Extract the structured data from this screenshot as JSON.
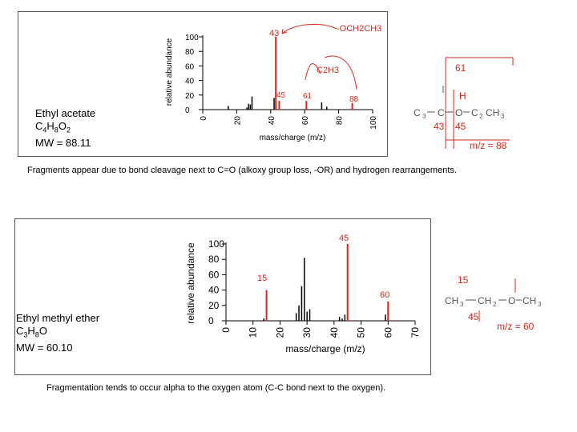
{
  "chart_data": [
    {
      "type": "bar",
      "compound": {
        "name": "Ethyl acetate",
        "formula_parts": [
          "C",
          "4",
          "H",
          "8",
          "O",
          "2"
        ],
        "mw": "MW = 88.11"
      },
      "xlabel": "mass/charge (m/z)",
      "ylabel": "relative abundance",
      "xlim": [
        0,
        100
      ],
      "ylim": [
        0,
        100
      ],
      "xticks": [
        "0",
        "20",
        "40",
        "60",
        "80",
        "100"
      ],
      "yticks": [
        "0",
        "20",
        "40",
        "60",
        "80",
        "100"
      ],
      "peaks": [
        {
          "x": 15,
          "y": 5
        },
        {
          "x": 26,
          "y": 3
        },
        {
          "x": 27,
          "y": 8
        },
        {
          "x": 28,
          "y": 7
        },
        {
          "x": 29,
          "y": 18
        },
        {
          "x": 42,
          "y": 16
        },
        {
          "x": 43,
          "y": 100,
          "hl": true
        },
        {
          "x": 45,
          "y": 12,
          "hl": true
        },
        {
          "x": 61,
          "y": 12,
          "hl": true
        },
        {
          "x": 70,
          "y": 10
        },
        {
          "x": 73,
          "y": 4
        },
        {
          "x": 88,
          "y": 9,
          "hl": true
        }
      ],
      "annotations": [
        "43",
        "-OCH2CH3",
        "C2H3",
        "45",
        "61",
        "88"
      ],
      "structure": {
        "frag_top": "61",
        "h": "H",
        "frag_43": "43",
        "frag_45": "45",
        "mz": "m/z = 88"
      },
      "caption": "Fragments appear due to bond cleavage next to C=O (alkoxy group loss, -OR) and hydrogen rearrangements."
    },
    {
      "type": "bar",
      "compound": {
        "name": "Ethyl methyl ether",
        "formula_parts": [
          "C",
          "3",
          "H",
          "8",
          "O",
          ""
        ],
        "mw": "MW = 60.10"
      },
      "xlabel": "mass/charge (m/z)",
      "ylabel": "relative abundance",
      "xlim": [
        0,
        70
      ],
      "ylim": [
        0,
        100
      ],
      "xticks": [
        "0",
        "10",
        "20",
        "30",
        "40",
        "50",
        "60",
        "70"
      ],
      "yticks": [
        "0",
        "20",
        "40",
        "60",
        "80",
        "100"
      ],
      "peaks": [
        {
          "x": 14,
          "y": 3
        },
        {
          "x": 15,
          "y": 40,
          "hl": true
        },
        {
          "x": 26,
          "y": 10
        },
        {
          "x": 27,
          "y": 20
        },
        {
          "x": 28,
          "y": 45
        },
        {
          "x": 29,
          "y": 82
        },
        {
          "x": 30,
          "y": 12
        },
        {
          "x": 31,
          "y": 15
        },
        {
          "x": 42,
          "y": 5
        },
        {
          "x": 43,
          "y": 3
        },
        {
          "x": 44,
          "y": 8
        },
        {
          "x": 45,
          "y": 100,
          "hl": true
        },
        {
          "x": 59,
          "y": 8
        },
        {
          "x": 60,
          "y": 25,
          "hl": true
        }
      ],
      "annotations": [
        "45",
        "15",
        "60"
      ],
      "structure": {
        "frag_15": "15",
        "frag_45": "45",
        "mz": "m/z = 60"
      },
      "caption": "Fragmentation tends to occur alpha to the oxygen atom (C-C bond next to the oxygen)."
    }
  ]
}
